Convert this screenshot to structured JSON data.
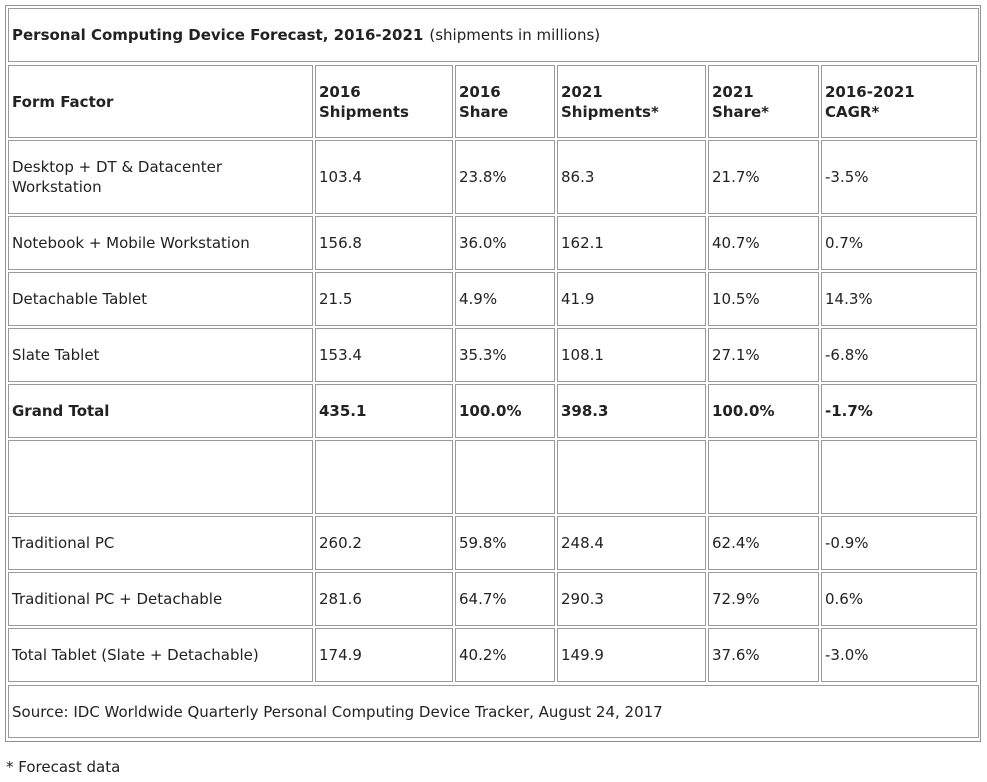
{
  "chart_data": {
    "type": "table",
    "title": "Personal Computing Device Forecast, 2016-2021",
    "subtitle": "(shipments in millions)",
    "columns": [
      "Form Factor",
      "2016 Shipments",
      "2016 Share",
      "2021 Shipments*",
      "2021 Share*",
      "2016-2021 CAGR*"
    ],
    "rows": [
      {
        "label": "Desktop + DT & Datacenter Workstation",
        "values": [
          "103.4",
          "23.8%",
          "86.3",
          "21.7%",
          "-3.5%"
        ]
      },
      {
        "label": "Notebook + Mobile Workstation",
        "values": [
          "156.8",
          "36.0%",
          "162.1",
          "40.7%",
          "0.7%"
        ]
      },
      {
        "label": "Detachable Tablet",
        "values": [
          "21.5",
          "4.9%",
          "41.9",
          "10.5%",
          "14.3%"
        ]
      },
      {
        "label": "Slate Tablet",
        "values": [
          "153.4",
          "35.3%",
          "108.1",
          "27.1%",
          "-6.8%"
        ]
      },
      {
        "label": "Grand Total",
        "values": [
          "435.1",
          "100.0%",
          "398.3",
          "100.0%",
          "-1.7%"
        ],
        "bold": true
      },
      {
        "label": "",
        "values": [
          "",
          "",
          "",
          "",
          ""
        ]
      },
      {
        "label": "Traditional PC",
        "values": [
          "260.2",
          "59.8%",
          "248.4",
          "62.4%",
          "-0.9%"
        ]
      },
      {
        "label": "Traditional PC + Detachable",
        "values": [
          "281.6",
          "64.7%",
          "290.3",
          "72.9%",
          "0.6%"
        ]
      },
      {
        "label": "Total Tablet (Slate + Detachable)",
        "values": [
          "174.9",
          "40.2%",
          "149.9",
          "37.6%",
          "-3.0%"
        ]
      }
    ],
    "source": "Source: IDC Worldwide Quarterly Personal Computing Device Tracker, August 24, 2017",
    "footnote": "* Forecast data"
  }
}
